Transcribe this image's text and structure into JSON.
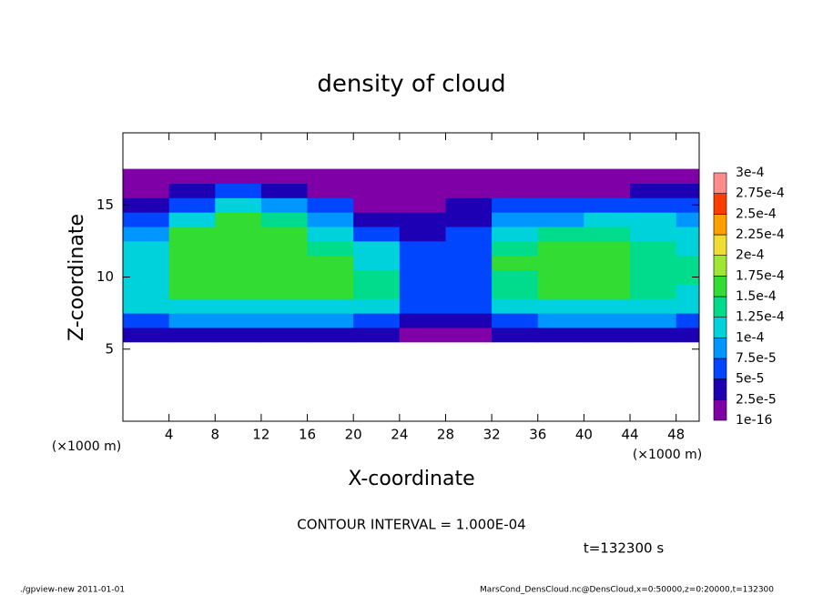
{
  "chart_data": {
    "type": "heatmap",
    "title": "density of cloud",
    "x_label": "X-coordinate",
    "y_label": "Z-coordinate",
    "x_unit": "(×1000 m)",
    "y_unit": "(×1000 m)",
    "xlim": [
      0,
      50
    ],
    "ylim": [
      0,
      20
    ],
    "xticks": [
      4,
      8,
      12,
      16,
      20,
      24,
      28,
      32,
      36,
      40,
      44,
      48
    ],
    "yticks": [
      5,
      10,
      15
    ],
    "x": [
      2,
      6,
      10,
      14,
      18,
      22,
      26,
      30,
      34,
      38,
      42,
      46,
      50
    ],
    "y": [
      6,
      7,
      8,
      9,
      10,
      11,
      12,
      13,
      14,
      15,
      16,
      17
    ],
    "z": [
      [
        3e-05,
        3e-05,
        3e-05,
        3e-05,
        3e-05,
        3e-05,
        2e-05,
        2e-05,
        3e-05,
        3e-05,
        3e-05,
        3e-05,
        3e-05
      ],
      [
        7e-05,
        8e-05,
        8e-05,
        8e-05,
        8e-05,
        7e-05,
        4e-05,
        4e-05,
        7e-05,
        8e-05,
        8e-05,
        8e-05,
        7e-05
      ],
      [
        0.00011,
        0.00012,
        0.00012,
        0.00012,
        0.00012,
        0.00011,
        5e-05,
        5e-05,
        0.00011,
        0.00012,
        0.00012,
        0.00012,
        0.00011
      ],
      [
        0.00012,
        0.00015,
        0.00016,
        0.00015,
        0.00015,
        0.00013,
        6e-05,
        6e-05,
        0.00014,
        0.00015,
        0.00015,
        0.00014,
        0.00012
      ],
      [
        0.00012,
        0.00016,
        0.00016,
        0.00016,
        0.00015,
        0.00013,
        6e-05,
        7e-05,
        0.00014,
        0.00016,
        0.00015,
        0.00014,
        0.00013
      ],
      [
        0.00012,
        0.00016,
        0.00017,
        0.00016,
        0.00015,
        0.00012,
        6e-05,
        7e-05,
        0.00015,
        0.00016,
        0.00016,
        0.00014,
        0.00013
      ],
      [
        0.00011,
        0.00016,
        0.00017,
        0.00016,
        0.00014,
        0.0001,
        5e-05,
        6e-05,
        0.00014,
        0.00015,
        0.00015,
        0.00013,
        0.00012
      ],
      [
        9e-05,
        0.00015,
        0.00016,
        0.00015,
        0.00012,
        7e-05,
        4e-05,
        5e-05,
        0.00012,
        0.00013,
        0.00013,
        0.00012,
        0.00011
      ],
      [
        6e-05,
        0.00012,
        0.00015,
        0.00013,
        9e-05,
        4e-05,
        3e-05,
        4e-05,
        9e-05,
        9e-05,
        0.0001,
        0.0001,
        9e-05
      ],
      [
        3e-05,
        7e-05,
        0.00012,
        9e-05,
        5e-05,
        2e-05,
        2e-05,
        3e-05,
        5e-05,
        5e-05,
        6e-05,
        6e-05,
        6e-05
      ],
      [
        2e-05,
        3e-05,
        5e-05,
        4e-05,
        2e-05,
        1e-16,
        1e-16,
        1e-16,
        1e-16,
        2e-05,
        2e-05,
        3e-05,
        3e-05
      ],
      [
        1e-16,
        1e-16,
        1e-16,
        1e-16,
        1e-16,
        1e-16,
        1e-16,
        1e-16,
        1e-16,
        1e-16,
        1e-16,
        1e-16,
        1e-16
      ]
    ],
    "levels": [
      {
        "value": 1e-16,
        "label": "1e-16"
      },
      {
        "value": 2.5e-05,
        "label": "2.5e-5"
      },
      {
        "value": 5e-05,
        "label": "5e-5"
      },
      {
        "value": 7.5e-05,
        "label": "7.5e-5"
      },
      {
        "value": 0.0001,
        "label": "1e-4"
      },
      {
        "value": 0.000125,
        "label": "1.25e-4"
      },
      {
        "value": 0.00015,
        "label": "1.5e-4"
      },
      {
        "value": 0.000175,
        "label": "1.75e-4"
      },
      {
        "value": 0.0002,
        "label": "2e-4"
      },
      {
        "value": 0.000225,
        "label": "2.25e-4"
      },
      {
        "value": 0.00025,
        "label": "2.5e-4"
      },
      {
        "value": 0.000275,
        "label": "2.75e-4"
      },
      {
        "value": 0.0003,
        "label": "3e-4"
      }
    ],
    "colors": [
      "#8000a8",
      "#1e00b4",
      "#0046ff",
      "#0096ff",
      "#00d2dc",
      "#00dc8c",
      "#32dc32",
      "#a0e632",
      "#f0dc32",
      "#ffa000",
      "#ff3c00",
      "#ff8c8c"
    ],
    "contour_interval": "CONTOUR INTERVAL = 1.000E-04",
    "time": "t=132300 s",
    "footer_left": "./gpview-new  2011-01-01",
    "footer_right": "MarsCond_DensCloud.nc@DensCloud,x=0:50000,z=0:20000,t=132300"
  }
}
